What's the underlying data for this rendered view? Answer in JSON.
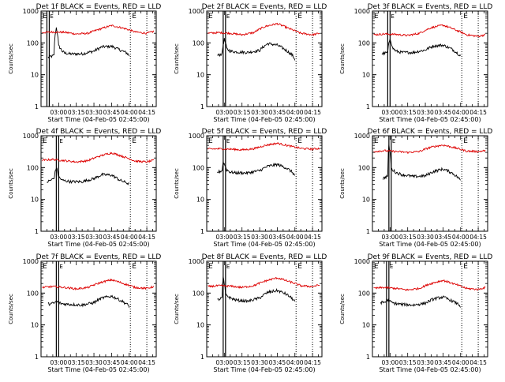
{
  "figure": {
    "x_axis_label": "Start Time (04-Feb-05 02:45:00)",
    "y_axis_label": "Counts/sec",
    "flag_label_left": "E",
    "flag_label_right": "E",
    "colors": {
      "events": "#000000",
      "lld": "#dd0000",
      "axes": "#000000"
    }
  },
  "chart_data": [
    {
      "type": "line",
      "title": "Det 1f BLACK = Events, RED = LLD",
      "xlabel": "Start Time (04-Feb-05 02:45:00)",
      "ylabel": "Counts/sec",
      "yscale": "log",
      "ylim": [
        1,
        1000
      ],
      "xlim": [
        "02:45",
        "04:23"
      ],
      "x_ticks": [
        "03:00",
        "03:15",
        "03:30",
        "03:45",
        "04:00",
        "04:15"
      ],
      "y_ticks": [
        "1",
        "10",
        "100",
        "1000"
      ],
      "flag_lines": [
        "02:50",
        "02:52",
        "04:01",
        "04:15"
      ],
      "series": [
        {
          "name": "Events (black)",
          "x": [
            "02:51",
            "02:56",
            "02:58",
            "03:00",
            "03:03",
            "03:05",
            "03:10",
            "03:20",
            "03:30",
            "03:37",
            "03:45",
            "03:52",
            "03:58",
            "04:00"
          ],
          "values": [
            35,
            40,
            300,
            80,
            55,
            48,
            45,
            45,
            55,
            75,
            78,
            60,
            48,
            40
          ]
        },
        {
          "name": "LLD (red)",
          "x": [
            "02:46",
            "02:55",
            "03:05",
            "03:15",
            "03:25",
            "03:35",
            "03:45",
            "03:55",
            "04:05",
            "04:15",
            "04:21"
          ],
          "values": [
            210,
            220,
            215,
            190,
            200,
            270,
            350,
            290,
            220,
            200,
            230
          ]
        }
      ]
    },
    {
      "type": "line",
      "title": "Det 2f BLACK = Events, RED = LLD",
      "xlabel": "Start Time (04-Feb-05 02:45:00)",
      "ylabel": "Counts/sec",
      "yscale": "log",
      "ylim": [
        1,
        1000
      ],
      "xlim": [
        "02:45",
        "04:23"
      ],
      "x_ticks": [
        "03:00",
        "03:15",
        "03:30",
        "03:45",
        "04:00",
        "04:15"
      ],
      "y_ticks": [
        "1",
        "10",
        "100",
        "1000"
      ],
      "flag_lines": [
        "02:59",
        "03:01",
        "04:01",
        "04:15"
      ],
      "series": [
        {
          "name": "Events (black)",
          "x": [
            "02:54",
            "02:58",
            "03:00",
            "03:02",
            "03:05",
            "03:10",
            "03:20",
            "03:30",
            "03:37",
            "03:45",
            "03:52",
            "03:58",
            "04:00"
          ],
          "values": [
            40,
            45,
            130,
            65,
            55,
            52,
            50,
            58,
            95,
            85,
            60,
            40,
            30
          ]
        },
        {
          "name": "LLD (red)",
          "x": [
            "02:46",
            "02:55",
            "03:05",
            "03:15",
            "03:25",
            "03:35",
            "03:45",
            "03:55",
            "04:05",
            "04:15",
            "04:21"
          ],
          "values": [
            200,
            210,
            200,
            180,
            210,
            330,
            400,
            280,
            200,
            180,
            200
          ]
        }
      ]
    },
    {
      "type": "line",
      "title": "Det 3f BLACK = Events, RED = LLD",
      "xlabel": "Start Time (04-Feb-05 02:45:00)",
      "ylabel": "Counts/sec",
      "yscale": "log",
      "ylim": [
        1,
        1000
      ],
      "xlim": [
        "02:45",
        "04:23"
      ],
      "x_ticks": [
        "03:00",
        "03:15",
        "03:30",
        "03:45",
        "04:00",
        "04:15"
      ],
      "y_ticks": [
        "1",
        "10",
        "100",
        "1000"
      ],
      "flag_lines": [
        "02:58",
        "03:00",
        "04:01",
        "04:15"
      ],
      "series": [
        {
          "name": "Events (black)",
          "x": [
            "02:53",
            "02:58",
            "03:00",
            "03:02",
            "03:05",
            "03:10",
            "03:20",
            "03:30",
            "03:37",
            "03:45",
            "03:52",
            "03:58",
            "04:00"
          ],
          "values": [
            45,
            50,
            140,
            70,
            55,
            50,
            50,
            60,
            80,
            85,
            65,
            45,
            40
          ]
        },
        {
          "name": "LLD (red)",
          "x": [
            "02:46",
            "02:55",
            "03:05",
            "03:15",
            "03:25",
            "03:35",
            "03:45",
            "03:55",
            "04:05",
            "04:15",
            "04:21"
          ],
          "values": [
            180,
            190,
            185,
            170,
            200,
            300,
            360,
            260,
            180,
            160,
            180
          ]
        }
      ]
    },
    {
      "type": "line",
      "title": "Det 4f BLACK = Events, RED = LLD",
      "xlabel": "Start Time (04-Feb-05 02:45:00)",
      "ylabel": "Counts/sec",
      "yscale": "log",
      "ylim": [
        1,
        1000
      ],
      "xlim": [
        "02:45",
        "04:23"
      ],
      "x_ticks": [
        "03:00",
        "03:15",
        "03:30",
        "03:45",
        "04:00",
        "04:15"
      ],
      "y_ticks": [
        "1",
        "10",
        "100",
        "1000"
      ],
      "flag_lines": [
        "02:58",
        "03:00",
        "04:01",
        "04:15"
      ],
      "series": [
        {
          "name": "Events (black)",
          "x": [
            "02:50",
            "02:56",
            "02:58",
            "03:00",
            "03:03",
            "03:10",
            "03:20",
            "03:30",
            "03:37",
            "03:45",
            "03:52",
            "03:58",
            "04:00"
          ],
          "values": [
            35,
            45,
            100,
            50,
            40,
            36,
            36,
            45,
            60,
            58,
            40,
            33,
            30
          ]
        },
        {
          "name": "LLD (red)",
          "x": [
            "02:46",
            "02:55",
            "03:05",
            "03:15",
            "03:25",
            "03:35",
            "03:45",
            "03:55",
            "04:05",
            "04:15",
            "04:21"
          ],
          "values": [
            170,
            180,
            165,
            150,
            165,
            230,
            290,
            220,
            160,
            150,
            170
          ]
        }
      ]
    },
    {
      "type": "line",
      "title": "Det 5f BLACK = Events, RED = LLD",
      "xlabel": "Start Time (04-Feb-05 02:45:00)",
      "ylabel": "Counts/sec",
      "yscale": "log",
      "ylim": [
        1,
        1000
      ],
      "xlim": [
        "02:45",
        "04:23"
      ],
      "x_ticks": [
        "03:00",
        "03:15",
        "03:30",
        "03:45",
        "04:00",
        "04:15"
      ],
      "y_ticks": [
        "1",
        "10",
        "100",
        "1000"
      ],
      "flag_lines": [
        "02:59",
        "03:01",
        "04:01",
        "04:15"
      ],
      "series": [
        {
          "name": "Events (black)",
          "x": [
            "02:54",
            "02:58",
            "02:59",
            "03:02",
            "03:05",
            "03:10",
            "03:20",
            "03:30",
            "03:37",
            "03:45",
            "03:52",
            "03:58",
            "04:00"
          ],
          "values": [
            70,
            80,
            150,
            85,
            72,
            68,
            68,
            80,
            110,
            125,
            100,
            70,
            55
          ]
        },
        {
          "name": "LLD (red)",
          "x": [
            "02:46",
            "02:55",
            "03:05",
            "03:15",
            "03:25",
            "03:35",
            "03:45",
            "03:55",
            "04:05",
            "04:15",
            "04:21"
          ],
          "values": [
            380,
            390,
            380,
            360,
            390,
            500,
            580,
            480,
            400,
            380,
            400
          ]
        }
      ]
    },
    {
      "type": "line",
      "title": "Det 6f BLACK = Events, RED = LLD",
      "xlabel": "Start Time (04-Feb-05 02:45:00)",
      "ylabel": "Counts/sec",
      "yscale": "log",
      "ylim": [
        1,
        1000
      ],
      "xlim": [
        "02:45",
        "04:23"
      ],
      "x_ticks": [
        "03:00",
        "03:15",
        "03:30",
        "03:45",
        "04:00",
        "04:15"
      ],
      "y_ticks": [
        "1",
        "10",
        "100",
        "1000"
      ],
      "flag_lines": [
        "02:59",
        "03:01",
        "04:01",
        "04:15"
      ],
      "series": [
        {
          "name": "Events (black)",
          "x": [
            "02:54",
            "02:58",
            "02:59",
            "03:01",
            "03:05",
            "03:10",
            "03:20",
            "03:30",
            "03:37",
            "03:45",
            "03:52",
            "03:58",
            "04:00"
          ],
          "values": [
            45,
            55,
            500,
            90,
            70,
            60,
            52,
            55,
            75,
            90,
            70,
            48,
            40
          ]
        },
        {
          "name": "LLD (red)",
          "x": [
            "02:46",
            "02:55",
            "03:05",
            "03:15",
            "03:25",
            "03:35",
            "03:45",
            "03:55",
            "04:05",
            "04:15",
            "04:21"
          ],
          "values": [
            320,
            340,
            320,
            300,
            320,
            440,
            510,
            420,
            330,
            320,
            340
          ]
        }
      ]
    },
    {
      "type": "line",
      "title": "Det 7f BLACK = Events, RED = LLD",
      "xlabel": "Start Time (04-Feb-05 02:45:00)",
      "ylabel": "Counts/sec",
      "yscale": "log",
      "ylim": [
        1,
        1000
      ],
      "xlim": [
        "02:45",
        "04:23"
      ],
      "x_ticks": [
        "03:00",
        "03:15",
        "03:30",
        "03:45",
        "04:00",
        "04:15"
      ],
      "y_ticks": [
        "1",
        "10",
        "100",
        "1000"
      ],
      "flag_lines": [
        "02:58",
        "03:00",
        "04:01",
        "04:15"
      ],
      "series": [
        {
          "name": "Events (black)",
          "x": [
            "02:51",
            "02:56",
            "02:58",
            "03:00",
            "03:03",
            "03:10",
            "03:20",
            "03:30",
            "03:37",
            "03:45",
            "03:52",
            "03:58",
            "04:00"
          ],
          "values": [
            45,
            48,
            55,
            50,
            46,
            44,
            42,
            50,
            70,
            80,
            60,
            45,
            38
          ]
        },
        {
          "name": "LLD (red)",
          "x": [
            "02:46",
            "02:55",
            "03:05",
            "03:15",
            "03:25",
            "03:35",
            "03:45",
            "03:55",
            "04:05",
            "04:15",
            "04:21"
          ],
          "values": [
            150,
            160,
            150,
            135,
            150,
            210,
            260,
            200,
            150,
            140,
            160
          ]
        }
      ]
    },
    {
      "type": "line",
      "title": "Det 8f BLACK = Events, RED = LLD",
      "xlabel": "Start Time (04-Feb-05 02:45:00)",
      "ylabel": "Counts/sec",
      "yscale": "log",
      "ylim": [
        1,
        1000
      ],
      "xlim": [
        "02:45",
        "04:23"
      ],
      "x_ticks": [
        "03:00",
        "03:15",
        "03:30",
        "03:45",
        "04:00",
        "04:15"
      ],
      "y_ticks": [
        "1",
        "10",
        "100",
        "1000"
      ],
      "flag_lines": [
        "02:59",
        "03:01",
        "04:01",
        "04:15"
      ],
      "series": [
        {
          "name": "Events (black)",
          "x": [
            "02:54",
            "02:58",
            "02:59",
            "03:01",
            "03:05",
            "03:10",
            "03:20",
            "03:30",
            "03:37",
            "03:45",
            "03:52",
            "03:58",
            "04:00"
          ],
          "values": [
            60,
            70,
            300,
            90,
            70,
            60,
            55,
            70,
            105,
            120,
            95,
            65,
            55
          ]
        },
        {
          "name": "LLD (red)",
          "x": [
            "02:46",
            "02:55",
            "03:05",
            "03:15",
            "03:25",
            "03:35",
            "03:45",
            "03:55",
            "04:05",
            "04:15",
            "04:21"
          ],
          "values": [
            160,
            170,
            165,
            150,
            170,
            240,
            300,
            230,
            170,
            160,
            180
          ]
        }
      ]
    },
    {
      "type": "line",
      "title": "Det 9f BLACK = Events, RED = LLD",
      "xlabel": "Start Time (04-Feb-05 02:45:00)",
      "ylabel": "Counts/sec",
      "yscale": "log",
      "ylim": [
        1,
        1000
      ],
      "xlim": [
        "02:45",
        "04:23"
      ],
      "x_ticks": [
        "03:00",
        "03:15",
        "03:30",
        "03:45",
        "04:00",
        "04:15"
      ],
      "y_ticks": [
        "1",
        "10",
        "100",
        "1000"
      ],
      "flag_lines": [
        "02:57",
        "02:59",
        "04:01",
        "04:15"
      ],
      "series": [
        {
          "name": "Events (black)",
          "x": [
            "02:52",
            "02:56",
            "02:58",
            "03:00",
            "03:03",
            "03:10",
            "03:20",
            "03:30",
            "03:37",
            "03:45",
            "03:52",
            "03:58",
            "04:00"
          ],
          "values": [
            50,
            52,
            60,
            54,
            48,
            44,
            42,
            48,
            65,
            75,
            58,
            45,
            38
          ]
        },
        {
          "name": "LLD (red)",
          "x": [
            "02:46",
            "02:55",
            "03:05",
            "03:15",
            "03:25",
            "03:35",
            "03:45",
            "03:55",
            "04:05",
            "04:15",
            "04:21"
          ],
          "values": [
            140,
            150,
            140,
            125,
            140,
            200,
            250,
            190,
            140,
            130,
            150
          ]
        }
      ]
    }
  ]
}
